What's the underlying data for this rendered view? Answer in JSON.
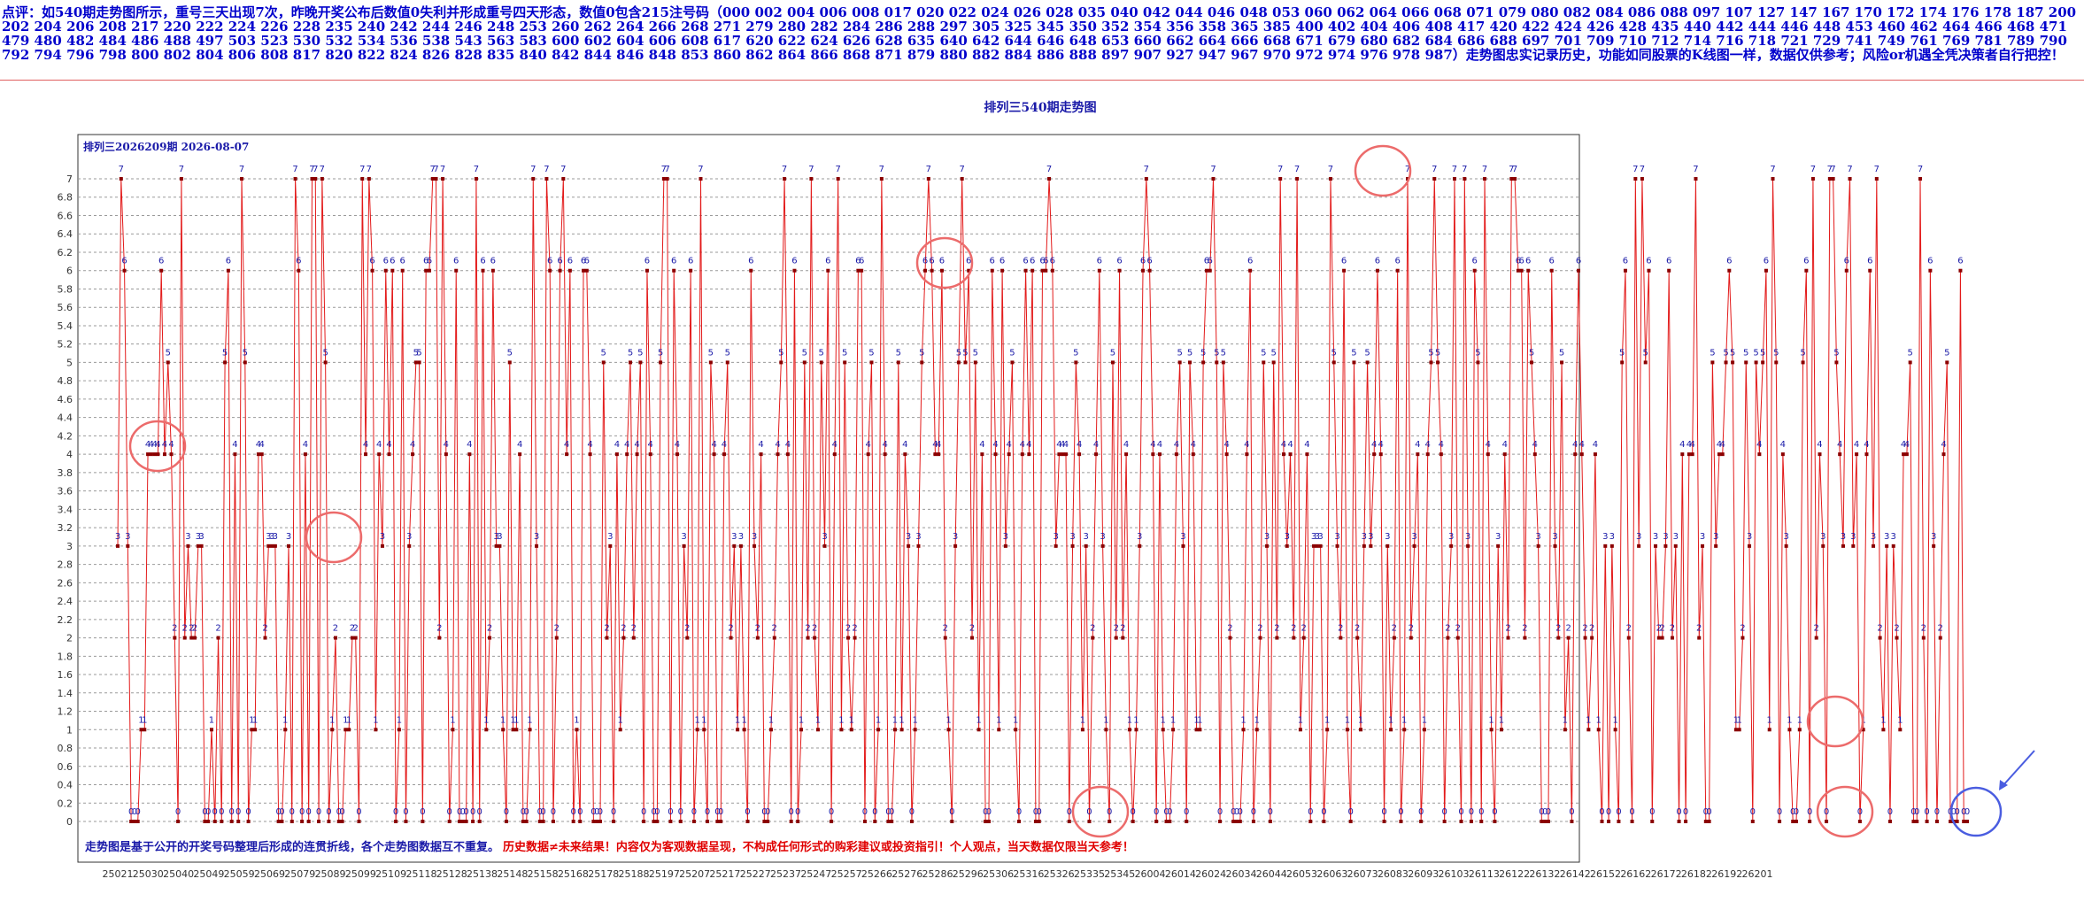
{
  "header": {
    "comment": "点评：如540期走势图所示，重号三天出现7次，昨晚开奖公布后数值0失利并形成重号四天形态，数值0包含215注号码（000 002 004 006 008 017 020 022 024 026 028 035 040 042 044 046 048 053 060 062 064 066 068 071 079 080 082 084 086 088 097 107 127 147 167 170 172 174 176 178 187 200 202 204 206 208 217 220 222 224 226 228 235 240 242 244 246 248 253 260 262 264 266 268 271 279 280 282 284 286 288 297 305 325 345 350 352 354 356 358 365 385 400 402 404 406 408 417 420 422 424 426 428 435 440 442 444 446 448 453 460 462 464 466 468 471 479 480 482 484 486 488 497 503 523 530 532 534 536 538 543 563 583 600 602 604 606 608 617 620 622 624 626 628 635 640 642 644 646 648 653 660 662 664 666 668 671 679 680 682 684 686 688 697 701 709 710 712 714 716 718 721 729 741 749 761 769 781 789 790 792 794 796 798 800 802 804 806 808 817 820 822 824 826 828 835 840 842 844 846 848 853 860 862 864 866 868 871 879 880 882 884 886 888 897 907 927 947 967 970 972 974 976 978 987）走势图忠实记录历史，功能如同股票的K线图一样，数据仅供参考；风险or机遇全凭决策者自行把控！"
  },
  "chart_data": {
    "type": "line",
    "title": "排列三540期走势图",
    "subtitle": "排列三2026209期 2026-08-07",
    "footer_blue": "走势图是基于公开的开奖号码整理后形成的连贯折线，各个走势图数据互不重复。",
    "footer_red": "历史数据≠未来结果！内容仅为客观数据呈现，不构成任何形式的购彩建议或投资指引！个人观点，当天数据仅限当天参考！",
    "ylim": [
      0,
      7
    ],
    "yticks": [
      "0",
      "0.2",
      "0.4",
      "0.6",
      "0.8",
      "1",
      "1.2",
      "1.4",
      "1.6",
      "1.8",
      "2",
      "2.2",
      "2.4",
      "2.6",
      "2.8",
      "3",
      "3.2",
      "3.4",
      "3.6",
      "3.8",
      "4",
      "4.2",
      "4.4",
      "4.6",
      "4.8",
      "5",
      "5.2",
      "5.4",
      "5.6",
      "5.8",
      "6",
      "6.2",
      "6.4",
      "6.6",
      "6.8",
      "7"
    ],
    "xticks": [
      "25021",
      "25030",
      "25040",
      "25049",
      "25059",
      "25069",
      "25079",
      "25089",
      "25099",
      "25109",
      "25118",
      "25128",
      "25138",
      "25148",
      "25158",
      "25168",
      "25178",
      "25188",
      "25197",
      "25207",
      "25217",
      "25227",
      "25237",
      "25247",
      "25257",
      "25266",
      "25276",
      "25286",
      "25296",
      "25306",
      "25316",
      "25326",
      "25335",
      "25345",
      "26004",
      "26014",
      "26024",
      "26034",
      "26044",
      "26053",
      "26063",
      "26073",
      "26083",
      "26093",
      "26103",
      "26113",
      "26122",
      "26132",
      "26142",
      "26152",
      "26162",
      "26172",
      "26182",
      "26192",
      "26201"
    ],
    "grid": true,
    "series": [
      {
        "color": "#e31a1a",
        "marker_color": "#8b0000",
        "label_color": "#1a1aa8",
        "values": [
          3,
          7,
          6,
          3,
          0,
          0,
          0,
          1,
          1,
          4,
          4,
          4,
          4,
          6,
          4,
          5,
          4,
          2,
          0,
          7,
          2,
          3,
          2,
          2,
          3,
          3,
          0,
          0,
          1,
          0,
          2,
          0,
          5,
          6,
          0,
          4,
          0,
          7,
          5,
          0,
          1,
          1,
          4,
          4,
          2,
          3,
          3,
          3,
          0,
          0,
          1,
          3,
          0,
          7,
          6,
          0,
          4,
          0,
          7,
          7,
          0,
          7,
          5,
          0,
          1,
          2,
          0,
          0,
          1,
          1,
          2,
          2,
          0,
          7,
          4,
          7,
          6,
          1,
          4,
          3,
          6,
          4,
          6,
          0,
          1,
          6,
          0,
          3,
          4,
          5,
          5,
          0,
          6,
          6,
          7,
          7,
          2,
          7,
          4,
          0,
          1,
          6,
          0,
          0,
          0,
          4,
          0,
          7,
          0,
          6,
          1,
          2,
          6,
          3,
          3,
          1,
          0,
          5,
          1,
          1,
          4,
          0,
          0,
          1,
          7,
          3,
          0,
          0,
          7,
          6,
          0,
          2,
          6,
          7,
          4,
          6,
          0,
          1,
          0,
          6,
          6,
          4,
          0,
          0,
          0,
          5,
          2,
          3,
          0,
          4,
          1,
          2,
          4,
          5,
          2,
          4,
          5,
          0,
          6,
          4,
          0,
          0,
          5,
          7,
          7,
          0,
          6,
          4,
          0,
          3,
          2,
          6,
          0,
          1,
          7,
          1,
          0,
          5,
          4,
          0,
          0,
          4,
          5,
          2,
          3,
          1,
          3,
          1,
          0,
          6,
          3,
          2,
          4,
          0,
          0,
          1,
          2,
          4,
          5,
          7,
          4,
          0,
          6,
          0,
          1,
          5,
          2,
          7,
          2,
          1,
          5,
          3,
          6,
          0,
          4,
          7,
          1,
          5,
          2,
          1,
          2,
          6,
          6,
          0,
          4,
          5,
          0,
          1,
          7,
          4,
          0,
          0,
          1,
          5,
          1,
          4,
          3,
          0,
          1,
          3,
          5,
          6,
          7,
          6,
          4,
          4,
          6,
          2,
          1,
          0,
          3,
          5,
          7,
          5,
          6,
          2,
          5,
          1,
          4,
          0,
          0,
          6,
          4,
          1,
          6,
          3,
          4,
          5,
          1,
          0,
          4,
          6,
          4,
          6,
          0,
          0,
          6,
          6,
          7,
          6,
          3,
          4,
          4,
          4,
          0,
          3,
          5,
          4,
          1,
          3,
          0,
          2,
          4,
          6,
          3,
          1,
          0,
          5,
          2,
          6,
          2,
          4,
          1,
          0,
          1,
          3,
          6,
          7,
          6,
          4,
          0,
          4,
          1,
          0,
          0,
          1,
          4,
          5,
          3,
          0,
          5,
          4,
          1,
          1,
          5,
          6,
          6,
          7,
          5,
          0,
          5,
          4,
          2,
          0,
          0,
          0,
          1,
          4,
          6,
          0,
          1,
          2,
          5,
          3,
          0,
          5,
          2,
          7,
          4,
          3,
          4,
          2,
          7,
          1,
          2,
          4,
          0,
          3,
          3,
          3,
          0,
          1,
          7,
          5,
          3,
          2,
          6,
          1,
          0,
          5,
          2,
          1,
          3,
          5,
          3,
          4,
          6,
          4,
          0,
          3,
          1,
          2,
          6,
          0,
          1,
          7,
          2,
          3,
          4,
          0,
          1,
          4,
          5,
          7,
          5,
          4,
          0,
          2,
          3,
          7,
          2,
          0,
          7,
          3,
          0,
          6,
          5,
          0,
          7,
          4,
          1,
          0,
          3,
          1,
          4,
          2,
          7,
          7,
          6,
          6,
          2,
          6,
          5,
          4,
          3,
          0,
          0,
          0,
          6,
          3,
          2,
          5,
          1,
          2,
          0,
          4,
          6,
          4,
          2,
          1,
          2,
          4,
          1,
          0,
          3,
          0,
          3,
          1,
          0,
          5,
          6,
          2,
          0,
          7,
          3,
          7,
          5,
          6,
          0,
          3,
          2,
          2,
          3,
          6,
          2,
          3,
          0,
          4,
          0,
          4,
          4,
          7,
          2,
          3,
          0,
          0,
          5,
          3,
          4,
          4,
          5,
          6,
          5,
          1,
          1,
          2,
          5,
          3,
          0,
          5,
          4,
          5,
          6,
          1,
          7,
          5,
          0,
          4,
          3,
          1,
          0,
          0,
          1,
          5,
          6,
          0,
          7,
          2,
          4,
          3,
          0,
          7,
          7,
          5,
          4,
          3,
          6,
          7,
          3,
          4,
          0,
          1,
          4,
          6,
          3,
          7,
          2,
          1,
          3,
          0,
          3,
          2,
          1,
          4,
          4,
          5,
          0,
          0,
          7,
          2,
          0,
          6,
          3,
          0,
          2,
          4,
          5,
          0,
          0,
          0,
          6,
          0,
          0
        ]
      }
    ]
  }
}
